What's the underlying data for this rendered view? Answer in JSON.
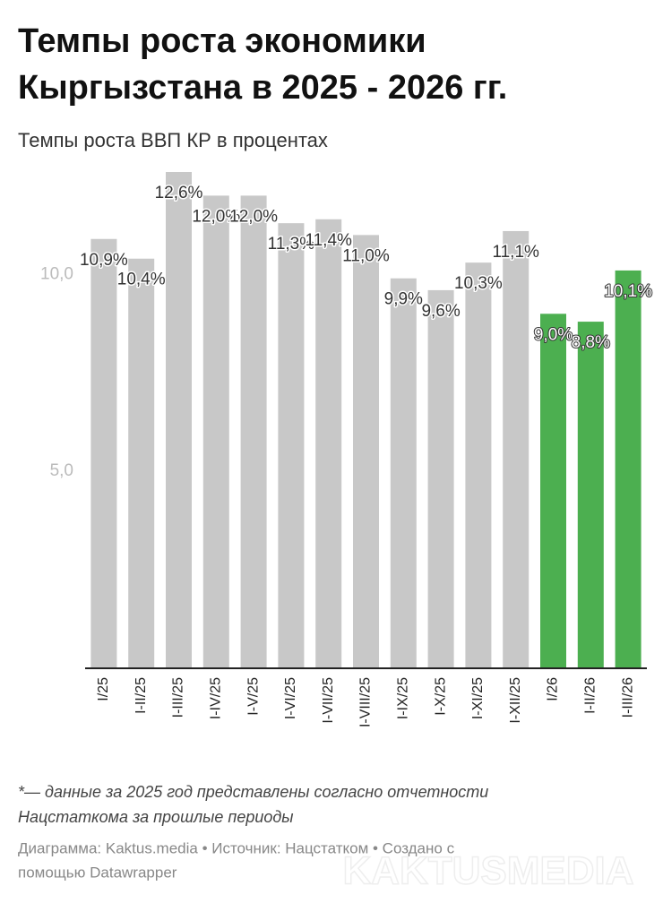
{
  "chart_data": {
    "type": "bar",
    "title": [
      "Темпы роста экономики",
      "Кыргызстана в 2025 - 2026 гг."
    ],
    "subtitle": "Темпы роста ВВП КР в процентах",
    "categories": [
      "I/25",
      "I-II/25",
      "I-III/25",
      "I-IV/25",
      "I-V/25",
      "I-VI/25",
      "I-VII/25",
      "I-VIII/25",
      "I-IX/25",
      "I-X/25",
      "I-XI/25",
      "I-XII/25",
      "I/26",
      "I-II/26",
      "I-III/26"
    ],
    "values": [
      10.9,
      10.4,
      12.6,
      12.0,
      12.0,
      11.3,
      11.4,
      11.0,
      9.9,
      9.6,
      10.3,
      11.1,
      9.0,
      8.8,
      10.1
    ],
    "value_labels": [
      "10,9%",
      "10,4%",
      "12,6%",
      "12,0%",
      "12,0%",
      "11,3%",
      "11,4%",
      "11,0%",
      "9,9%",
      "9,6%",
      "10,3%",
      "11,1%",
      "9,0%",
      "8,8%",
      "10,1%"
    ],
    "colors": [
      "#c8c8c8",
      "#c8c8c8",
      "#c8c8c8",
      "#c8c8c8",
      "#c8c8c8",
      "#c8c8c8",
      "#c8c8c8",
      "#c8c8c8",
      "#c8c8c8",
      "#c8c8c8",
      "#c8c8c8",
      "#c8c8c8",
      "#4caf50",
      "#4caf50",
      "#4caf50"
    ],
    "ylim": [
      0,
      12.6
    ],
    "yticks": [
      {
        "value": 5,
        "label": "5,0"
      },
      {
        "value": 10,
        "label": "10,0"
      }
    ],
    "grid": false,
    "notes": [
      "*— данные за 2025 год представлены согласно отчетности",
      "Нацстаткома за прошлые периоды"
    ],
    "footer": [
      "Диаграмма: Kaktus.media • Источник: Нацстатком • Создано с",
      "помощью Datawrapper"
    ],
    "watermark": "KAKTUSMEDIA"
  }
}
